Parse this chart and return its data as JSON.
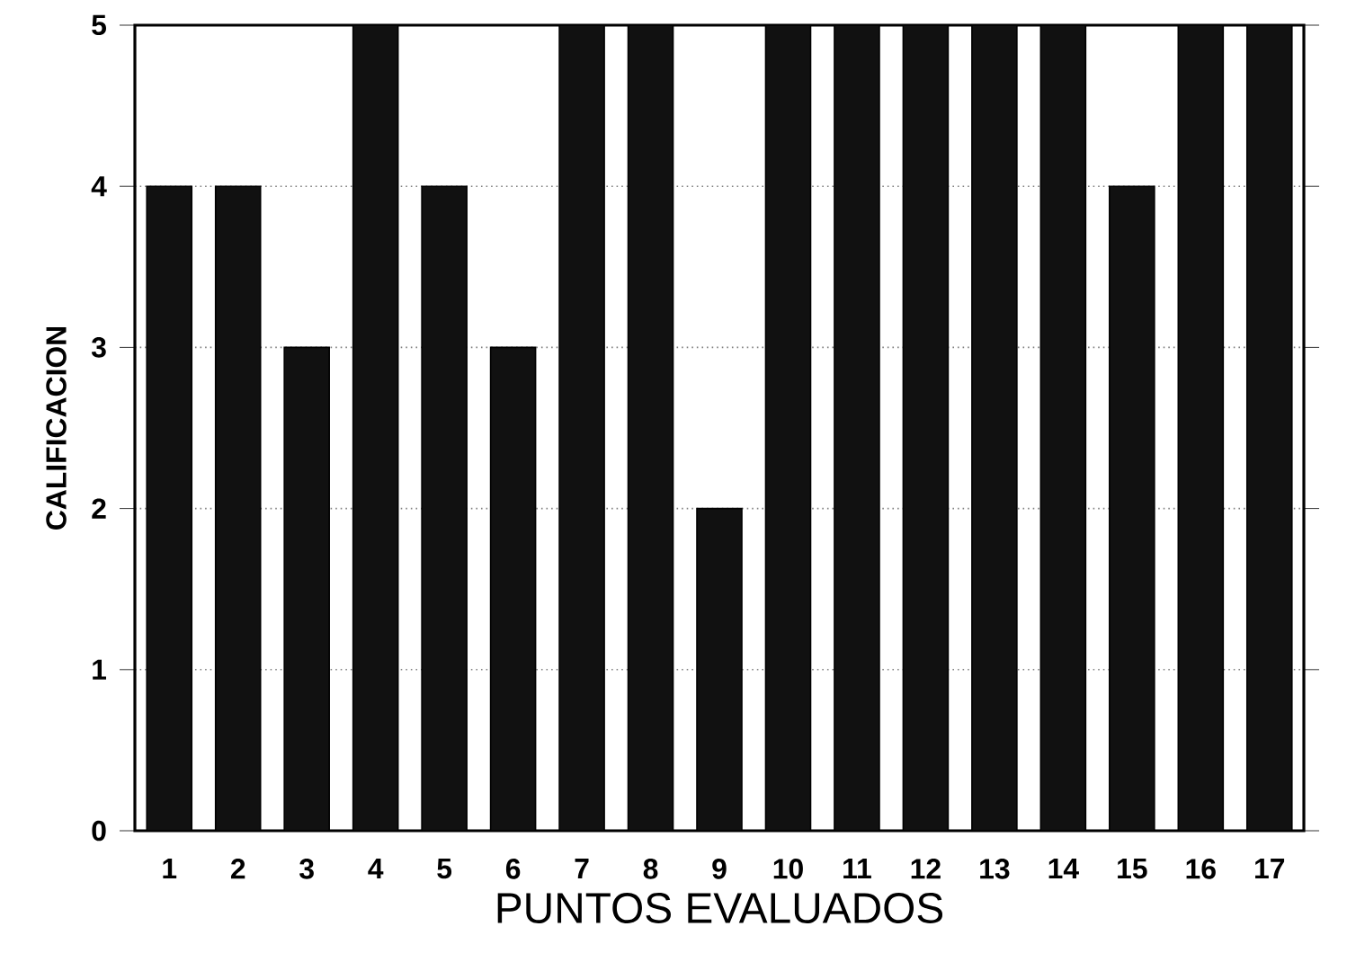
{
  "chart_data": {
    "type": "bar",
    "xlabel": "PUNTOS EVALUADOS",
    "ylabel": "CALIFICACION",
    "categories": [
      "1",
      "2",
      "3",
      "4",
      "5",
      "6",
      "7",
      "8",
      "9",
      "10",
      "11",
      "12",
      "13",
      "14",
      "15",
      "16",
      "17"
    ],
    "values": [
      4,
      4,
      3,
      5,
      4,
      3,
      5,
      5,
      2,
      5,
      5,
      5,
      5,
      5,
      4,
      5,
      5
    ],
    "color": "#111111",
    "ylim": [
      0,
      5
    ],
    "yticks": [
      0,
      1,
      2,
      3,
      4,
      5
    ],
    "grid": "y"
  }
}
